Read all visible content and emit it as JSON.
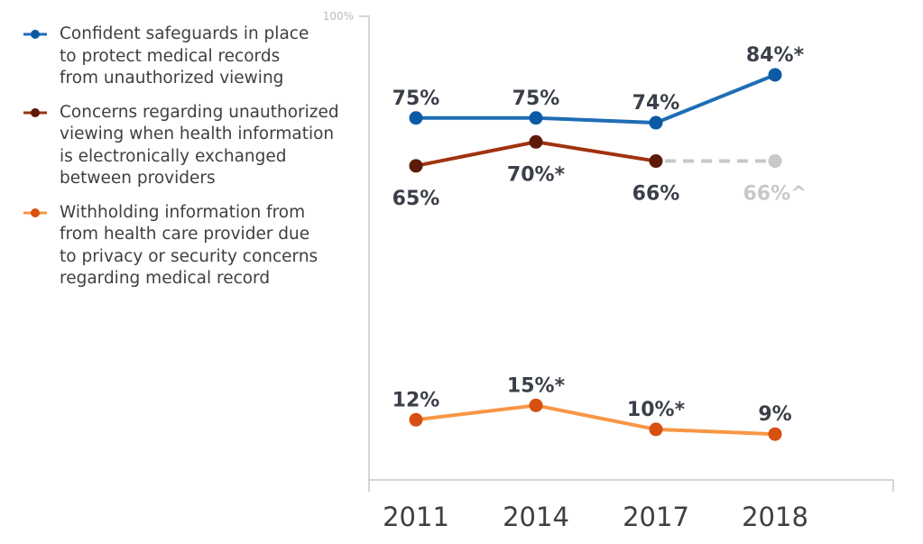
{
  "chart_data": {
    "type": "line",
    "categories": [
      "2011",
      "2014",
      "2017",
      "2018"
    ],
    "y_tick_labels": [
      "100%"
    ],
    "ylim": [
      0,
      100
    ],
    "grid": false,
    "legend_placement": "left",
    "series": [
      {
        "name": "Confident safeguards in place to protect medical records from unauthorized viewing",
        "values": [
          75,
          75,
          74,
          84
        ],
        "labels": [
          "75%",
          "75%",
          "74%",
          "84%*"
        ],
        "line_color": "#1f6db5",
        "marker_color": "#0b5aa6"
      },
      {
        "name": "Concerns regarding unauthorized viewing when health information is electronically exchanged between providers",
        "values": [
          65,
          70,
          66,
          null
        ],
        "labels": [
          "65%",
          "70%*",
          "66%",
          null
        ],
        "line_color": "#a0330f",
        "marker_color": "#5c1a08",
        "projected": {
          "category": "2018",
          "value": 66,
          "label": "66%^",
          "color": "#c8c8c8"
        }
      },
      {
        "name": "Withholding information from from health care provider due to privacy or security concerns regarding medical record",
        "values": [
          12,
          15,
          10,
          9
        ],
        "labels": [
          "12%",
          "15%*",
          "10%*",
          "9%"
        ],
        "line_color": "#f79646",
        "marker_color": "#d6500f"
      }
    ]
  },
  "legend": [
    "Confident safeguards in place\nto protect medical records\nfrom unauthorized viewing",
    "Concerns regarding unauthorized\nviewing when health information\nis electronically exchanged\nbetween providers",
    "Withholding information from\nfrom health care provider due\nto privacy or security concerns\nregarding medical record"
  ],
  "colors": {
    "axis": "#c8c8c8",
    "label_text": "#3b3f4a",
    "tick_text": "#3f3f3f"
  }
}
